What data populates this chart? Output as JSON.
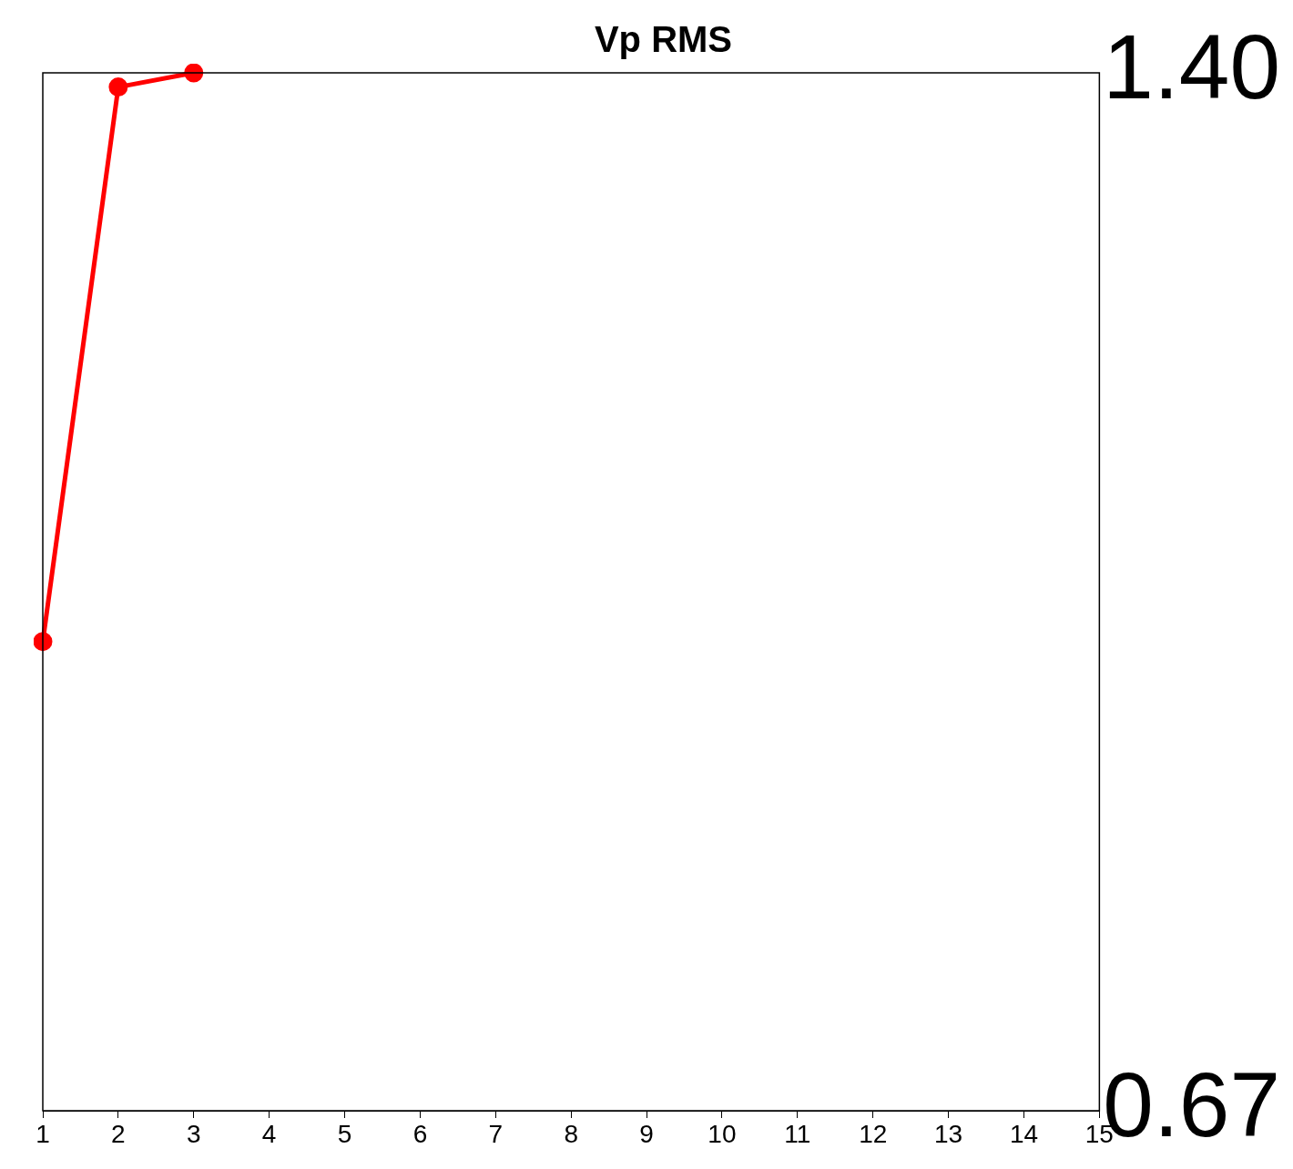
{
  "chart_data": {
    "type": "line",
    "title": "Vp RMS",
    "x": [
      1,
      2,
      3
    ],
    "series": [
      {
        "color": "#ff0000",
        "values": [
          1.0,
          1.39,
          1.4
        ]
      }
    ],
    "xlim": [
      1,
      15
    ],
    "xticks": [
      1,
      2,
      3,
      4,
      5,
      6,
      7,
      8,
      9,
      10,
      11,
      12,
      13,
      14,
      15
    ],
    "ylim": [
      0.67,
      1.4
    ],
    "yticks": [
      {
        "value": 0.67,
        "label": "0.67"
      },
      {
        "value": 1.4,
        "label": "1.40"
      }
    ],
    "grid": false,
    "legend": false,
    "marker": "circle",
    "line_style": "solid"
  }
}
